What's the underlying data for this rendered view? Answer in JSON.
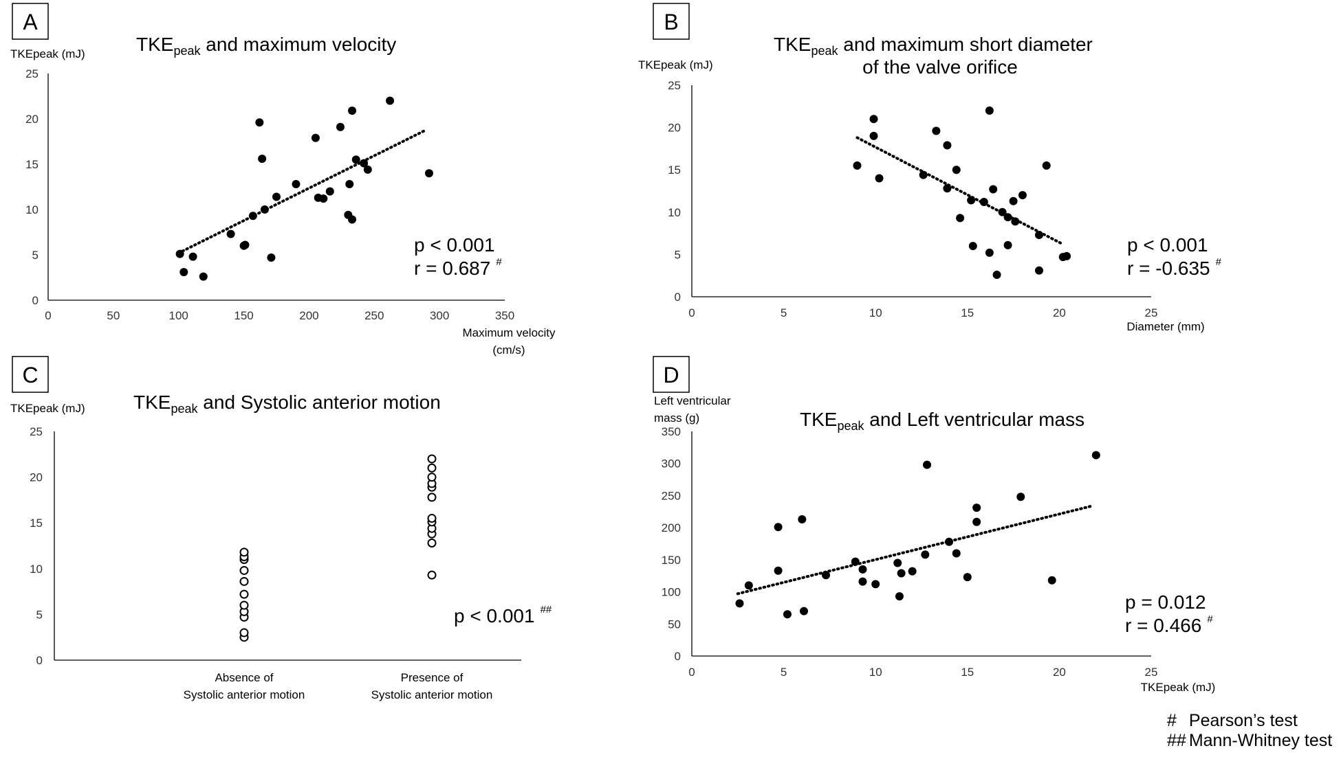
{
  "chart_data": [
    {
      "panel": "A",
      "type": "scatter",
      "title_main": "TKE",
      "title_sub": "peak",
      "title_rest": " and maximum velocity",
      "ylabel": "TKEpeak (mJ)",
      "xlabel": [
        "Maximum velocity",
        "(cm/s)"
      ],
      "xlim": [
        0,
        350
      ],
      "ylim": [
        0,
        25
      ],
      "xticks": [
        0,
        50,
        100,
        150,
        200,
        250,
        300,
        350
      ],
      "yticks": [
        0,
        5,
        10,
        15,
        20,
        25
      ],
      "points": [
        [
          101,
          5.1
        ],
        [
          104,
          3.1
        ],
        [
          111,
          4.8
        ],
        [
          119,
          2.6
        ],
        [
          140,
          7.3
        ],
        [
          150,
          6.0
        ],
        [
          151,
          6.1
        ],
        [
          157,
          9.3
        ],
        [
          162,
          19.6
        ],
        [
          164,
          15.6
        ],
        [
          166,
          10.0
        ],
        [
          171,
          4.7
        ],
        [
          175,
          11.4
        ],
        [
          190,
          12.8
        ],
        [
          205,
          17.9
        ],
        [
          207,
          11.3
        ],
        [
          211,
          11.2
        ],
        [
          216,
          12.0
        ],
        [
          224,
          19.1
        ],
        [
          230,
          9.4
        ],
        [
          231,
          12.8
        ],
        [
          233,
          8.9
        ],
        [
          233,
          20.9
        ],
        [
          236,
          15.5
        ],
        [
          242,
          15.1
        ],
        [
          245,
          14.4
        ],
        [
          262,
          22.0
        ],
        [
          292,
          14.0
        ]
      ],
      "trend": [
        [
          100,
          5.2
        ],
        [
          290,
          18.8
        ]
      ],
      "stats": [
        {
          "label": "p < 0.001",
          "sup": ""
        },
        {
          "label": "r = 0.687",
          "sup": "#"
        }
      ]
    },
    {
      "panel": "B",
      "type": "scatter",
      "title_main": "TKE",
      "title_sub": "peak",
      "title_rest": " and maximum short diameter",
      "title_line2": "of the valve orifice",
      "ylabel": "TKEpeak (mJ)",
      "xlabel": [
        "Diameter (mm)"
      ],
      "xlim": [
        0,
        25
      ],
      "ylim": [
        0,
        25
      ],
      "xticks": [
        0,
        5,
        10,
        15,
        20,
        25
      ],
      "yticks": [
        0,
        5,
        10,
        15,
        20,
        25
      ],
      "points": [
        [
          9.0,
          15.5
        ],
        [
          9.9,
          21.0
        ],
        [
          9.9,
          19.0
        ],
        [
          10.2,
          14.0
        ],
        [
          12.6,
          14.4
        ],
        [
          13.3,
          19.6
        ],
        [
          13.9,
          17.9
        ],
        [
          13.9,
          12.8
        ],
        [
          14.4,
          15.0
        ],
        [
          14.6,
          9.3
        ],
        [
          15.2,
          11.4
        ],
        [
          15.3,
          6.0
        ],
        [
          15.9,
          11.2
        ],
        [
          16.2,
          22.0
        ],
        [
          16.2,
          5.2
        ],
        [
          16.4,
          12.7
        ],
        [
          16.6,
          2.6
        ],
        [
          16.9,
          10.0
        ],
        [
          17.2,
          6.1
        ],
        [
          17.2,
          9.4
        ],
        [
          17.5,
          11.3
        ],
        [
          17.6,
          8.9
        ],
        [
          18.0,
          12.0
        ],
        [
          18.9,
          7.3
        ],
        [
          18.9,
          3.1
        ],
        [
          19.3,
          15.5
        ],
        [
          20.2,
          4.7
        ],
        [
          20.4,
          4.8
        ]
      ],
      "trend": [
        [
          9.0,
          18.8
        ],
        [
          20.2,
          6.2
        ]
      ],
      "stats": [
        {
          "label": "p < 0.001",
          "sup": ""
        },
        {
          "label": "r = -0.635",
          "sup": "#"
        }
      ]
    },
    {
      "panel": "C",
      "type": "strip",
      "title_main": "TKE",
      "title_sub": "peak",
      "title_rest": " and Systolic anterior motion",
      "ylabel": "TKEpeak (mJ)",
      "ylim": [
        0,
        25
      ],
      "yticks": [
        0,
        5,
        10,
        15,
        20,
        25
      ],
      "categories": [
        [
          "Absence of",
          "Systolic anterior motion"
        ],
        [
          "Presence of",
          "Systolic anterior motion"
        ]
      ],
      "groups": [
        [
          2.5,
          3.0,
          4.7,
          5.3,
          6.0,
          7.2,
          8.6,
          9.8,
          11.0,
          11.3,
          11.8
        ],
        [
          9.3,
          12.8,
          13.8,
          14.4,
          15.1,
          15.5,
          17.8,
          18.9,
          19.3,
          20.0,
          21.0,
          22.0
        ]
      ],
      "stats": [
        {
          "label": "p < 0.001",
          "sup": "##"
        }
      ]
    },
    {
      "panel": "D",
      "type": "scatter",
      "title_main": "TKE",
      "title_sub": "peak",
      "title_rest": " and Left ventricular mass",
      "ylabel": [
        "Left ventricular",
        "mass (g)"
      ],
      "xlabel": [
        "TKEpeak (mJ)"
      ],
      "xlim": [
        0,
        25
      ],
      "ylim": [
        0,
        350
      ],
      "xticks": [
        0,
        5,
        10,
        15,
        20,
        25
      ],
      "yticks": [
        0,
        50,
        100,
        150,
        200,
        250,
        300,
        350
      ],
      "points": [
        [
          2.6,
          82
        ],
        [
          3.1,
          110
        ],
        [
          4.7,
          133
        ],
        [
          4.7,
          201
        ],
        [
          5.2,
          65
        ],
        [
          6.0,
          213
        ],
        [
          6.1,
          70
        ],
        [
          7.3,
          126
        ],
        [
          8.9,
          147
        ],
        [
          9.3,
          135
        ],
        [
          9.3,
          116
        ],
        [
          10.0,
          112
        ],
        [
          11.2,
          145
        ],
        [
          11.3,
          93
        ],
        [
          11.4,
          129
        ],
        [
          12.0,
          132
        ],
        [
          12.7,
          158
        ],
        [
          12.8,
          298
        ],
        [
          14.0,
          178
        ],
        [
          14.4,
          160
        ],
        [
          15.0,
          123
        ],
        [
          15.5,
          231
        ],
        [
          15.5,
          209
        ],
        [
          17.9,
          248
        ],
        [
          19.6,
          118
        ],
        [
          22.0,
          313
        ]
      ],
      "trend": [
        [
          2.5,
          97
        ],
        [
          21.8,
          234
        ]
      ],
      "stats": [
        {
          "label": "p = 0.012",
          "sup": ""
        },
        {
          "label": "r = 0.466",
          "sup": "#"
        }
      ]
    }
  ],
  "legend": [
    {
      "symbol": "#",
      "text": "Pearson’s test"
    },
    {
      "symbol": "##",
      "text": "Mann-Whitney test"
    }
  ]
}
